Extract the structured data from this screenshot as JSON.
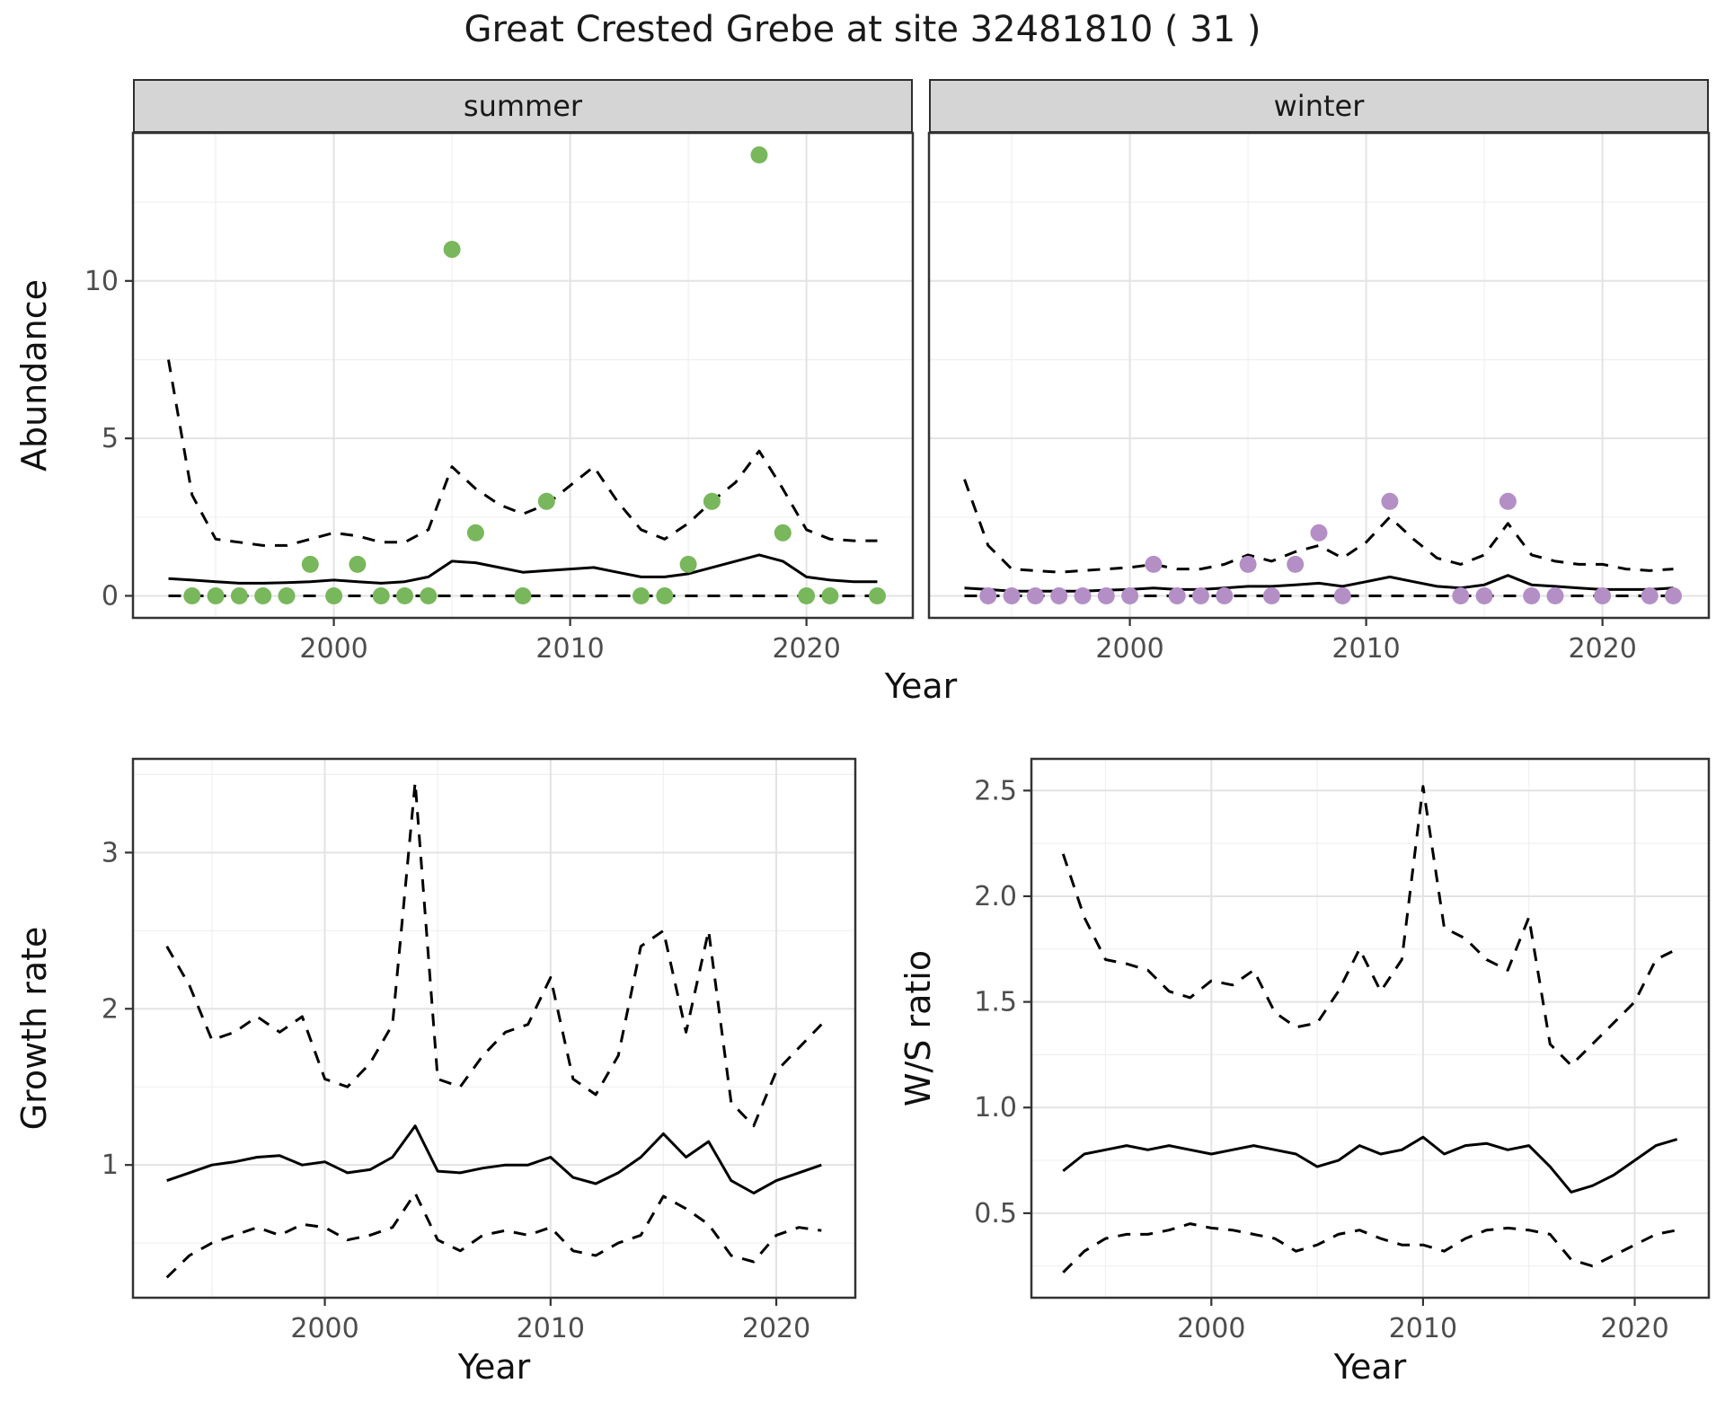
{
  "title": "Great Crested Grebe at site 32481810 ( 31 )",
  "style": {
    "panel_bg": "#ffffff",
    "panel_border": "#333333",
    "grid_major": "#e3e3e3",
    "grid_minor": "#f0f0f0",
    "line_color": "#000000",
    "dash_pattern": "14 11",
    "tick_color": "#333333",
    "tick_label_color": "#4d4d4d",
    "strip_bg": "#d5d5d5",
    "summer_point_color": "#78b75b",
    "winter_point_color": "#b38fc6"
  },
  "chart_data": [
    {
      "id": "abundance-summer",
      "type": "scatter",
      "facet": "summer",
      "xlabel": "Year",
      "ylabel": "Abundance",
      "xlim": [
        1991.5,
        2024.5
      ],
      "ylim": [
        -0.7,
        14.7
      ],
      "xticks": [
        2000,
        2010,
        2020
      ],
      "xtick_labels": [
        "2000",
        "2010",
        "2020"
      ],
      "yticks": [
        0,
        5,
        10
      ],
      "ytick_labels": [
        "0",
        "5",
        "10"
      ],
      "point_color": "#78b75b",
      "points": {
        "x": [
          1994,
          1995,
          1996,
          1997,
          1998,
          1999,
          2000,
          2001,
          2002,
          2003,
          2004,
          2005,
          2006,
          2008,
          2009,
          2013,
          2014,
          2015,
          2016,
          2018,
          2019,
          2020,
          2021,
          2023
        ],
        "y": [
          0,
          0,
          0,
          0,
          0,
          1,
          0,
          1,
          0,
          0,
          0,
          11,
          2,
          0,
          3,
          0,
          0,
          1,
          3,
          14,
          2,
          0,
          0,
          0
        ]
      },
      "series": [
        {
          "name": "median",
          "style": "solid",
          "x_start": 1993,
          "x_step": 1,
          "y": [
            0.55,
            0.5,
            0.45,
            0.4,
            0.4,
            0.42,
            0.45,
            0.5,
            0.45,
            0.4,
            0.45,
            0.6,
            1.1,
            1.05,
            0.9,
            0.75,
            0.8,
            0.85,
            0.9,
            0.75,
            0.6,
            0.6,
            0.7,
            0.9,
            1.1,
            1.3,
            1.1,
            0.6,
            0.5,
            0.45,
            0.45
          ]
        },
        {
          "name": "upper_ci",
          "style": "dashed",
          "x_start": 1993,
          "x_step": 1,
          "y": [
            7.5,
            3.2,
            1.8,
            1.7,
            1.6,
            1.6,
            1.8,
            2.0,
            1.9,
            1.7,
            1.7,
            2.1,
            4.1,
            3.4,
            2.9,
            2.6,
            2.9,
            3.5,
            4.1,
            3.0,
            2.1,
            1.8,
            2.3,
            3.0,
            3.6,
            4.6,
            3.4,
            2.1,
            1.8,
            1.75,
            1.75
          ]
        },
        {
          "name": "lower_ci",
          "style": "dashed",
          "x_start": 1993,
          "x_step": 1,
          "y": [
            0,
            0,
            0,
            0,
            0,
            0,
            0,
            0,
            0,
            0,
            0,
            0,
            0,
            0,
            0,
            0,
            0,
            0,
            0,
            0,
            0,
            0,
            0,
            0,
            0,
            0,
            0,
            0,
            0,
            0,
            0
          ]
        }
      ]
    },
    {
      "id": "abundance-winter",
      "type": "scatter",
      "facet": "winter",
      "xlabel": "Year",
      "ylabel": "Abundance",
      "xlim": [
        1991.5,
        2024.5
      ],
      "ylim": [
        -0.7,
        14.7
      ],
      "xticks": [
        2000,
        2010,
        2020
      ],
      "xtick_labels": [
        "2000",
        "2010",
        "2020"
      ],
      "yticks": [
        0,
        5,
        10
      ],
      "ytick_labels": [
        "0",
        "5",
        "10"
      ],
      "point_color": "#b38fc6",
      "points": {
        "x": [
          1994,
          1995,
          1996,
          1997,
          1998,
          1999,
          2000,
          2001,
          2002,
          2003,
          2004,
          2005,
          2006,
          2007,
          2008,
          2009,
          2011,
          2014,
          2015,
          2016,
          2017,
          2018,
          2020,
          2022,
          2023
        ],
        "y": [
          0,
          0,
          0,
          0,
          0,
          0,
          0,
          1,
          0,
          0,
          0,
          1,
          0,
          1,
          2,
          0,
          3,
          0,
          0,
          3,
          0,
          0,
          0,
          0,
          0
        ]
      },
      "series": [
        {
          "name": "median",
          "style": "solid",
          "x_start": 1993,
          "x_step": 1,
          "y": [
            0.25,
            0.2,
            0.15,
            0.15,
            0.15,
            0.15,
            0.18,
            0.2,
            0.25,
            0.2,
            0.2,
            0.25,
            0.3,
            0.3,
            0.35,
            0.4,
            0.3,
            0.45,
            0.6,
            0.45,
            0.3,
            0.25,
            0.35,
            0.65,
            0.35,
            0.3,
            0.25,
            0.2,
            0.2,
            0.2,
            0.25
          ]
        },
        {
          "name": "upper_ci",
          "style": "dashed",
          "x_start": 1993,
          "x_step": 1,
          "y": [
            3.7,
            1.6,
            0.85,
            0.8,
            0.75,
            0.8,
            0.85,
            0.9,
            1.0,
            0.85,
            0.85,
            1.0,
            1.3,
            1.1,
            1.4,
            1.6,
            1.2,
            1.7,
            2.5,
            1.8,
            1.2,
            1.0,
            1.3,
            2.3,
            1.3,
            1.1,
            1.0,
            1.0,
            0.85,
            0.8,
            0.85
          ]
        },
        {
          "name": "lower_ci",
          "style": "dashed",
          "x_start": 1993,
          "x_step": 1,
          "y": [
            0,
            0,
            0,
            0,
            0,
            0,
            0,
            0,
            0,
            0,
            0,
            0,
            0,
            0,
            0,
            0,
            0,
            0,
            0,
            0,
            0,
            0,
            0,
            0,
            0,
            0,
            0,
            0,
            0,
            0,
            0
          ]
        }
      ]
    },
    {
      "id": "growth-rate",
      "type": "line",
      "facet": "",
      "xlabel": "Year",
      "ylabel": "Growth rate",
      "xlim": [
        1991.5,
        2023.5
      ],
      "ylim": [
        0.15,
        3.6
      ],
      "xticks": [
        2000,
        2010,
        2020
      ],
      "xtick_labels": [
        "2000",
        "2010",
        "2020"
      ],
      "yticks": [
        1,
        2,
        3
      ],
      "ytick_labels": [
        "1",
        "2",
        "3"
      ],
      "series": [
        {
          "name": "median",
          "style": "solid",
          "x_start": 1993,
          "x_step": 1,
          "y": [
            0.9,
            0.95,
            1.0,
            1.02,
            1.05,
            1.06,
            1.0,
            1.02,
            0.95,
            0.97,
            1.05,
            1.25,
            0.96,
            0.95,
            0.98,
            1.0,
            1.0,
            1.05,
            0.92,
            0.88,
            0.95,
            1.05,
            1.2,
            1.05,
            1.15,
            0.9,
            0.82,
            0.9,
            0.95,
            1.0
          ]
        },
        {
          "name": "upper_ci",
          "style": "dashed",
          "x_start": 1993,
          "x_step": 1,
          "y": [
            2.4,
            2.15,
            1.8,
            1.85,
            1.95,
            1.85,
            1.95,
            1.55,
            1.5,
            1.65,
            1.9,
            3.45,
            1.55,
            1.5,
            1.7,
            1.85,
            1.9,
            2.2,
            1.55,
            1.45,
            1.7,
            2.4,
            2.5,
            1.85,
            2.5,
            1.4,
            1.25,
            1.6,
            1.75,
            1.9
          ]
        },
        {
          "name": "lower_ci",
          "style": "dashed",
          "x_start": 1993,
          "x_step": 1,
          "y": [
            0.28,
            0.42,
            0.5,
            0.55,
            0.6,
            0.55,
            0.62,
            0.6,
            0.52,
            0.55,
            0.6,
            0.82,
            0.52,
            0.45,
            0.55,
            0.58,
            0.55,
            0.6,
            0.45,
            0.42,
            0.5,
            0.55,
            0.8,
            0.72,
            0.62,
            0.42,
            0.38,
            0.55,
            0.6,
            0.58
          ]
        }
      ]
    },
    {
      "id": "ws-ratio",
      "type": "line",
      "facet": "",
      "xlabel": "Year",
      "ylabel": "W/S ratio",
      "xlim": [
        1991.5,
        2023.5
      ],
      "ylim": [
        0.1,
        2.65
      ],
      "xticks": [
        2000,
        2010,
        2020
      ],
      "xtick_labels": [
        "2000",
        "2010",
        "2020"
      ],
      "yticks": [
        0.5,
        1.0,
        1.5,
        2.0,
        2.5
      ],
      "ytick_labels": [
        "0.5",
        "1.0",
        "1.5",
        "2.0",
        "2.5"
      ],
      "series": [
        {
          "name": "median",
          "style": "solid",
          "x_start": 1993,
          "x_step": 1,
          "y": [
            0.7,
            0.78,
            0.8,
            0.82,
            0.8,
            0.82,
            0.8,
            0.78,
            0.8,
            0.82,
            0.8,
            0.78,
            0.72,
            0.75,
            0.82,
            0.78,
            0.8,
            0.86,
            0.78,
            0.82,
            0.83,
            0.8,
            0.82,
            0.72,
            0.6,
            0.63,
            0.68,
            0.75,
            0.82,
            0.85
          ]
        },
        {
          "name": "upper_ci",
          "style": "dashed",
          "x_start": 1993,
          "x_step": 1,
          "y": [
            2.2,
            1.9,
            1.7,
            1.68,
            1.65,
            1.55,
            1.52,
            1.6,
            1.58,
            1.65,
            1.45,
            1.38,
            1.4,
            1.55,
            1.75,
            1.55,
            1.7,
            2.52,
            1.85,
            1.8,
            1.7,
            1.65,
            1.9,
            1.3,
            1.2,
            1.3,
            1.4,
            1.5,
            1.7,
            1.75
          ]
        },
        {
          "name": "lower_ci",
          "style": "dashed",
          "x_start": 1993,
          "x_step": 1,
          "y": [
            0.22,
            0.32,
            0.38,
            0.4,
            0.4,
            0.42,
            0.45,
            0.43,
            0.42,
            0.4,
            0.38,
            0.32,
            0.35,
            0.4,
            0.42,
            0.38,
            0.35,
            0.35,
            0.32,
            0.38,
            0.42,
            0.43,
            0.42,
            0.4,
            0.28,
            0.25,
            0.3,
            0.35,
            0.4,
            0.42
          ]
        }
      ]
    }
  ]
}
